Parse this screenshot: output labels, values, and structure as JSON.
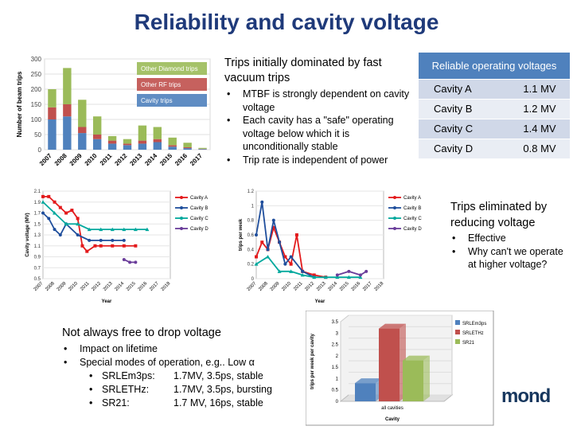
{
  "title": "Reliability and cavity voltage",
  "intro_text": "Trips initially dominated by fast vacuum trips",
  "bullets": [
    "MTBF is strongly dependent on cavity voltage",
    "Each cavity has a \"safe\" operating voltage below which it is unconditionally stable",
    "Trip rate is independent of power"
  ],
  "voltage_table": {
    "header": "Reliable operating voltages",
    "rows": [
      {
        "cavity": "Cavity A",
        "voltage": "1.1 MV"
      },
      {
        "cavity": "Cavity B",
        "voltage": "1.2 MV"
      },
      {
        "cavity": "Cavity C",
        "voltage": "1.4 MV"
      },
      {
        "cavity": "Cavity D",
        "voltage": "0.8 MV"
      }
    ]
  },
  "eliminated": {
    "text": "Trips eliminated by reducing voltage",
    "bullets": [
      "Effective",
      "Why can't we operate at higher voltage?"
    ]
  },
  "not_free": {
    "text": "Not always free to drop voltage",
    "bullets": [
      "Impact on lifetime",
      "Special modes of operation, e.g.. Low α"
    ],
    "modes": [
      {
        "name": "SRLEm3ps:",
        "value": "1.7MV, 3.5ps, stable"
      },
      {
        "name": "SRLETHz:",
        "value": "1.7MV, 3.5ps, bursting"
      },
      {
        "name": "SR21:",
        "value": "1.7 MV, 16ps, stable"
      }
    ]
  },
  "logo_text": "mond",
  "chart_data": [
    {
      "type": "bar",
      "stacked": true,
      "ylabel": "Number of beam trips",
      "ylim": [
        0,
        300
      ],
      "yticks": [
        "0",
        "50",
        "100",
        "150",
        "200",
        "250",
        "300"
      ],
      "categories": [
        "2007",
        "2008",
        "2009",
        "2010",
        "2011",
        "2012",
        "2013",
        "2014",
        "2015",
        "2016",
        "2017"
      ],
      "series": [
        {
          "name": "Cavity trips",
          "color": "#4f81bd",
          "values": [
            100,
            110,
            55,
            35,
            20,
            15,
            20,
            25,
            10,
            5,
            2
          ]
        },
        {
          "name": "Other RF trips",
          "color": "#c0504d",
          "values": [
            40,
            40,
            20,
            15,
            10,
            5,
            10,
            10,
            5,
            3,
            1
          ]
        },
        {
          "name": "Other Diamond trips",
          "color": "#9bbb59",
          "values": [
            60,
            120,
            90,
            60,
            15,
            15,
            50,
            40,
            25,
            15,
            3
          ]
        }
      ],
      "legend": "inside-top-right"
    },
    {
      "type": "line",
      "xlabel": "Year",
      "ylabel": "Cavity voltage (MV)",
      "ylim": [
        0.5,
        2.1
      ],
      "yticks": [
        "0.5",
        "0.7",
        "0.9",
        "1.1",
        "1.3",
        "1.5",
        "1.7",
        "1.9",
        "2.1"
      ],
      "xticks": [
        "2007",
        "2008",
        "2009",
        "2010",
        "2011",
        "2012",
        "2013",
        "2014",
        "2015",
        "2016",
        "2017",
        "2018"
      ],
      "xrange": [
        2007,
        2018
      ],
      "series": [
        {
          "name": "Cavity A",
          "color": "#e31a1c",
          "x": [
            2007,
            2007.5,
            2008,
            2008.5,
            2009,
            2009.5,
            2010,
            2010.4,
            2010.8,
            2011.5,
            2012,
            2013,
            2014,
            2015
          ],
          "y": [
            2.0,
            2.0,
            1.9,
            1.8,
            1.7,
            1.75,
            1.6,
            1.1,
            1.0,
            1.1,
            1.1,
            1.1,
            1.1,
            1.1
          ]
        },
        {
          "name": "Cavity B",
          "color": "#1f4e9c",
          "x": [
            2007,
            2007.5,
            2008,
            2008.5,
            2009,
            2010,
            2011,
            2012,
            2013,
            2014
          ],
          "y": [
            1.7,
            1.6,
            1.4,
            1.3,
            1.5,
            1.3,
            1.2,
            1.2,
            1.2,
            1.2
          ]
        },
        {
          "name": "Cavity C",
          "color": "#00a89d",
          "x": [
            2007,
            2008,
            2009,
            2010,
            2011,
            2012,
            2013,
            2014,
            2015,
            2016
          ],
          "y": [
            1.9,
            1.7,
            1.5,
            1.5,
            1.4,
            1.4,
            1.4,
            1.4,
            1.4,
            1.4
          ]
        },
        {
          "name": "Cavity D",
          "color": "#6a3d9a",
          "x": [
            2014,
            2014.5,
            2015
          ],
          "y": [
            0.85,
            0.8,
            0.8
          ]
        }
      ],
      "legend": "right"
    },
    {
      "type": "line",
      "xlabel": "Year",
      "ylabel": "trips per week",
      "ylim": [
        0,
        1.2
      ],
      "yticks": [
        "0",
        "0.2",
        "0.4",
        "0.6",
        "0.8",
        "1",
        "1.2"
      ],
      "xticks": [
        "2007",
        "2008",
        "2009",
        "2010",
        "2011",
        "2012",
        "2013",
        "2014",
        "2015",
        "2016",
        "2017",
        "2018"
      ],
      "xrange": [
        2007,
        2018
      ],
      "series": [
        {
          "name": "Cavity A",
          "color": "#e31a1c",
          "x": [
            2007,
            2007.5,
            2008,
            2008.5,
            2009,
            2009.5,
            2010,
            2010.5,
            2011,
            2012,
            2013
          ],
          "y": [
            0.3,
            0.5,
            0.4,
            0.7,
            0.5,
            0.3,
            0.2,
            0.6,
            0.1,
            0.05,
            0.02
          ]
        },
        {
          "name": "Cavity B",
          "color": "#1f4e9c",
          "x": [
            2007,
            2007.5,
            2008,
            2008.5,
            2009,
            2009.5,
            2010,
            2011,
            2012
          ],
          "y": [
            0.6,
            1.05,
            0.4,
            0.8,
            0.5,
            0.2,
            0.3,
            0.1,
            0.02
          ]
        },
        {
          "name": "Cavity C",
          "color": "#00a89d",
          "x": [
            2007,
            2008,
            2009,
            2010,
            2011,
            2012,
            2013,
            2014,
            2015,
            2016
          ],
          "y": [
            0.2,
            0.3,
            0.1,
            0.1,
            0.05,
            0.02,
            0.02,
            0.02,
            0.02,
            0.02
          ]
        },
        {
          "name": "Cavity D",
          "color": "#6a3d9a",
          "x": [
            2014,
            2015,
            2016,
            2016.5
          ],
          "y": [
            0.05,
            0.1,
            0.05,
            0.1
          ]
        }
      ],
      "legend": "right"
    },
    {
      "type": "bar",
      "ylabel": "trips per week per cavity",
      "xlabel": "Cavity",
      "categories": [
        "all cavities"
      ],
      "ylim": [
        0,
        3.5
      ],
      "yticks": [
        "0",
        "0.5",
        "1",
        "1.5",
        "2",
        "2.5",
        "3",
        "3.5"
      ],
      "series": [
        {
          "name": "SRLEm3ps",
          "color": "#4f81bd",
          "values": [
            0.8
          ]
        },
        {
          "name": "SRLETHz",
          "color": "#c0504d",
          "values": [
            3.2
          ]
        },
        {
          "name": "SR21",
          "color": "#9bbb59",
          "values": [
            1.8
          ]
        }
      ],
      "legend": "right"
    }
  ]
}
